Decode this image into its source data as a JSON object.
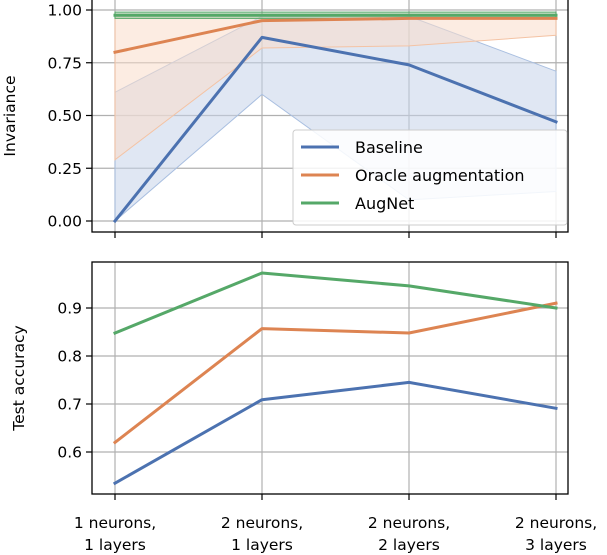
{
  "colors": {
    "baseline": "#4c72b0",
    "oracle": "#dd8452",
    "augnet": "#55a868",
    "grid": "#b0b0b0",
    "band_baseline": "#c6d4ea",
    "band_oracle": "#f9dccb"
  },
  "chart_data": [
    {
      "type": "line",
      "title": "",
      "xlabel": "",
      "ylabel": "Invariance",
      "ylim": [
        -0.04,
        1.02
      ],
      "grid": true,
      "legend_position": "bottom-right",
      "categories": [
        "1 neurons,\n1 layers",
        "2 neurons,\n1 layers",
        "2 neurons,\n2 layers",
        "2 neurons,\n3 layers"
      ],
      "yticks": [
        "0.00",
        "0.25",
        "0.50",
        "0.75",
        "1.00"
      ],
      "series": [
        {
          "name": "Baseline",
          "color_key": "baseline",
          "values": [
            0.0,
            0.87,
            0.74,
            0.47
          ],
          "band_low": [
            0.0,
            0.6,
            0.1,
            0.14
          ],
          "band_high": [
            0.61,
            0.97,
            0.97,
            0.71
          ]
        },
        {
          "name": "Oracle augmentation",
          "color_key": "oracle",
          "values": [
            0.8,
            0.95,
            0.96,
            0.96
          ],
          "band_low": [
            0.29,
            0.82,
            0.83,
            0.88
          ],
          "band_high": [
            0.98,
            0.98,
            0.98,
            0.98
          ]
        },
        {
          "name": "AugNet",
          "color_key": "augnet",
          "values": [
            0.975,
            0.975,
            0.975,
            0.975
          ],
          "band_low": [
            0.96,
            0.96,
            0.96,
            0.96
          ],
          "band_high": [
            0.99,
            0.99,
            0.99,
            0.99
          ]
        }
      ]
    },
    {
      "type": "line",
      "title": "",
      "xlabel": "",
      "ylabel": "Test accuracy",
      "ylim": [
        0.5,
        0.98
      ],
      "grid": true,
      "categories": [
        "1 neurons,\n1 layers",
        "2 neurons,\n1 layers",
        "2 neurons,\n2 layers",
        "2 neurons,\n3 layers"
      ],
      "yticks": [
        "0.6",
        "0.7",
        "0.8",
        "0.9"
      ],
      "series": [
        {
          "name": "Baseline",
          "color_key": "baseline",
          "values": [
            0.535,
            0.709,
            0.745,
            0.691
          ]
        },
        {
          "name": "Oracle augmentation",
          "color_key": "oracle",
          "values": [
            0.62,
            0.857,
            0.848,
            0.91
          ]
        },
        {
          "name": "AugNet",
          "color_key": "augnet",
          "values": [
            0.848,
            0.973,
            0.946,
            0.9
          ]
        }
      ]
    }
  ]
}
